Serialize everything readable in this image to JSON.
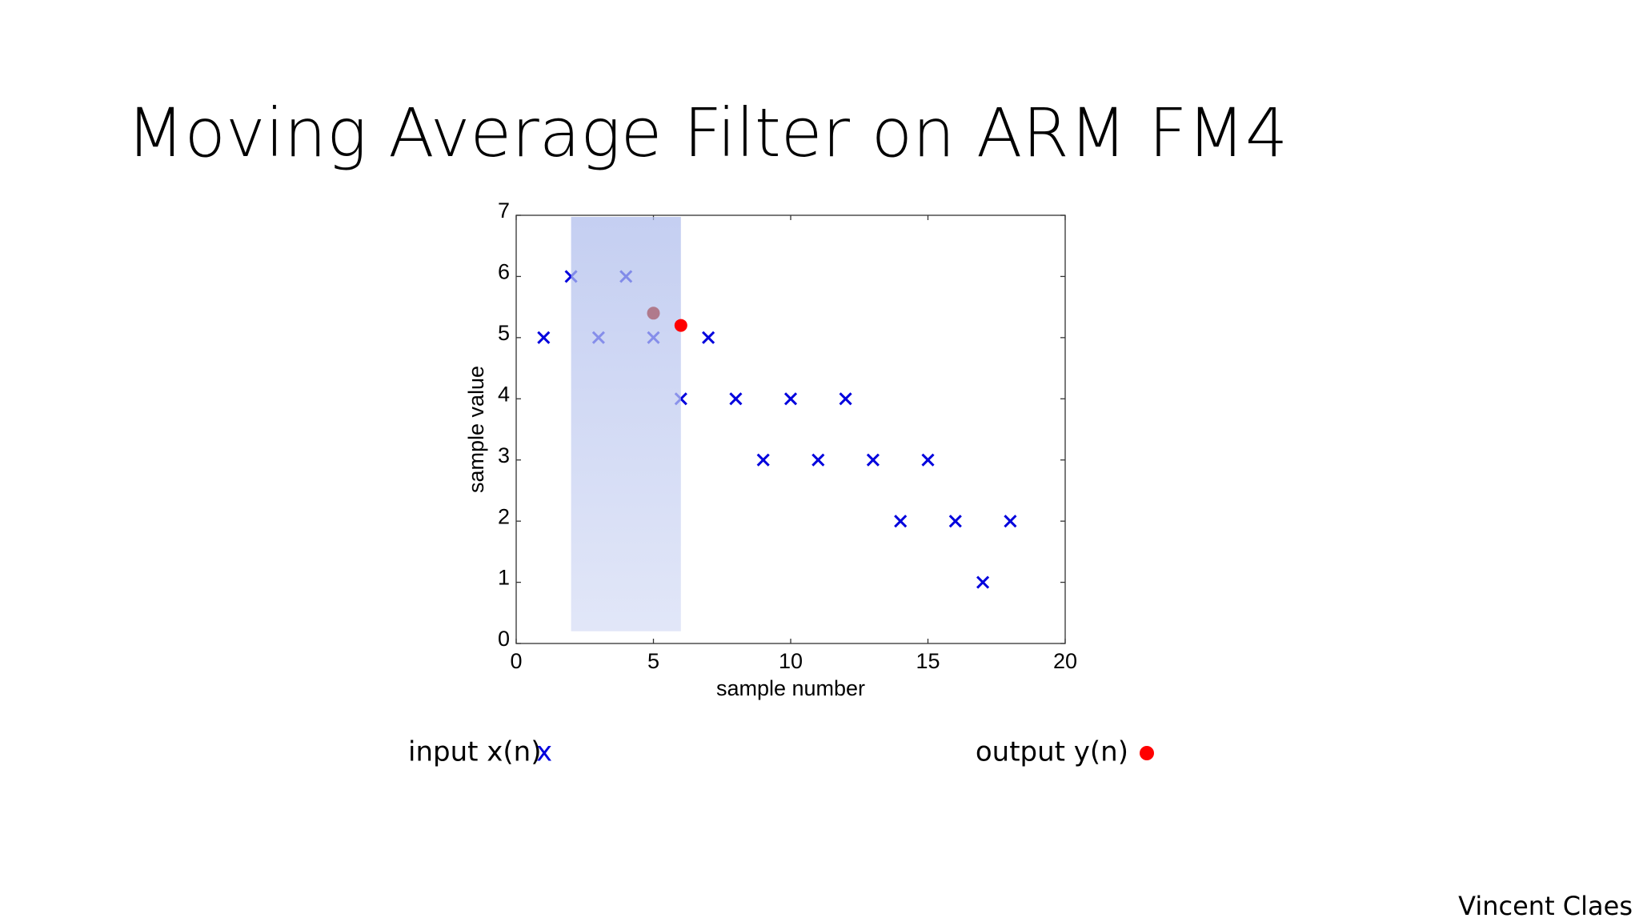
{
  "slide": {
    "title": "Moving Average Filter on ARM FM4",
    "input_label": "input x(n)",
    "input_marker": "x",
    "output_label": "output y(n)",
    "author": "Vincent Claes"
  },
  "chart_data": {
    "type": "scatter",
    "xlabel": "sample number",
    "ylabel": "sample value",
    "xlim": [
      0,
      20
    ],
    "ylim": [
      0,
      7
    ],
    "xticks": [
      0,
      5,
      10,
      15,
      20
    ],
    "yticks": [
      0,
      1,
      2,
      3,
      4,
      5,
      6,
      7
    ],
    "window": [
      2,
      6
    ],
    "series": [
      {
        "name": "input x(n)",
        "color": "#0000dd",
        "marker": "x",
        "x": [
          1,
          2,
          3,
          4,
          5,
          6,
          7,
          8,
          9,
          10,
          11,
          12,
          13,
          14,
          15,
          16,
          17,
          18
        ],
        "values": [
          5,
          6,
          5,
          6,
          5,
          4,
          5,
          4,
          3,
          4,
          3,
          4,
          3,
          2,
          3,
          2,
          1,
          2
        ]
      },
      {
        "name": "output y(n)",
        "color": "#ff0000",
        "marker": "o",
        "x": [
          5,
          6
        ],
        "values": [
          5.4,
          5.2
        ],
        "colors": [
          "#b07a8c",
          "#ff0000"
        ]
      }
    ]
  }
}
